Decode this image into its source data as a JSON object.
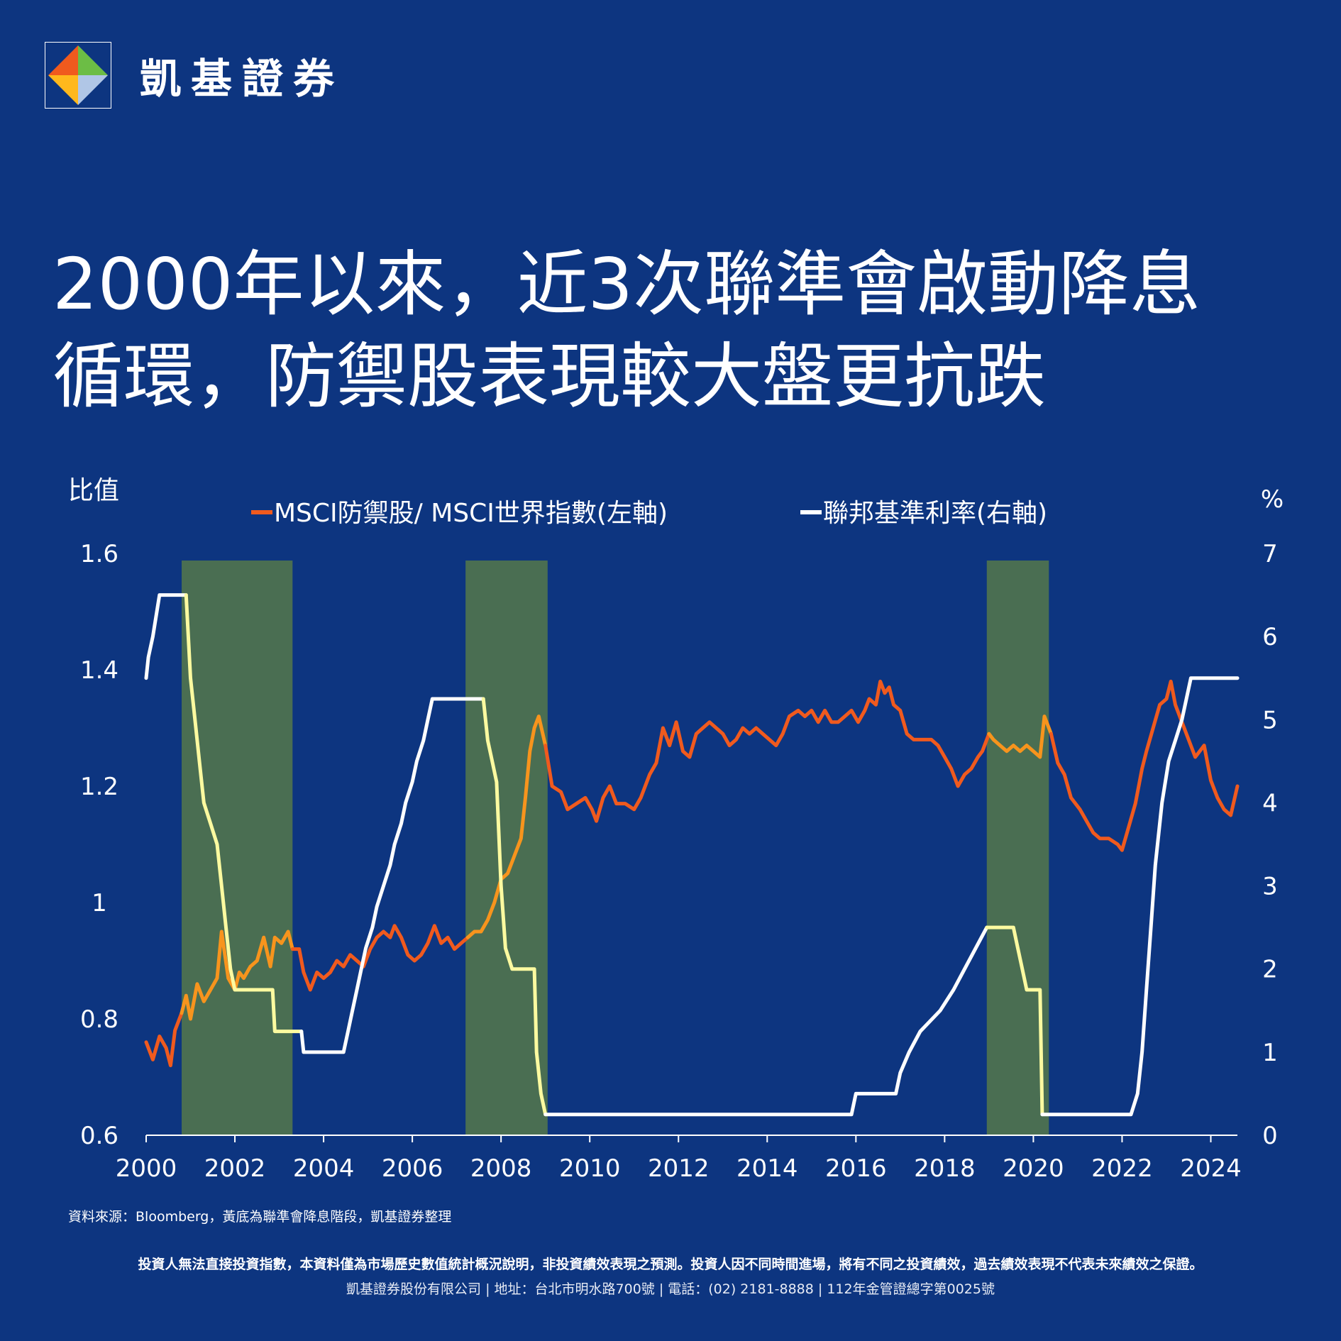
{
  "brand": {
    "name": "凱基證券"
  },
  "headline": {
    "line1": "2000年以來，近3次聯準會啟動降息",
    "line2": "循環，防禦股表現較大盤更抗跌"
  },
  "chart_data": {
    "type": "line",
    "left_axis": {
      "label": "比值",
      "ylim": [
        0.6,
        1.6
      ],
      "ticks": [
        "1.6",
        "1.4",
        "1.2",
        "1",
        "0.8",
        "0.6"
      ]
    },
    "right_axis": {
      "label": "%",
      "ylim": [
        0,
        7
      ],
      "ticks": [
        "7",
        "6",
        "5",
        "4",
        "3",
        "2",
        "1",
        "0"
      ]
    },
    "x_axis": {
      "xlim": [
        2000,
        2024.6
      ],
      "ticks": [
        "2000",
        "2002",
        "2004",
        "2006",
        "2008",
        "2010",
        "2012",
        "2014",
        "2016",
        "2018",
        "2020",
        "2022",
        "2024"
      ]
    },
    "legend": {
      "placement": "top",
      "entries": [
        {
          "name": "MSCI防禦股/ MSCI世界指數(左軸)",
          "color": "#f05a1e"
        },
        {
          "name": "聯邦基準利率(右軸)",
          "color": "#ffffff"
        }
      ]
    },
    "shaded_periods": [
      {
        "start": 2000.8,
        "end": 2003.3
      },
      {
        "start": 2007.2,
        "end": 2009.05
      },
      {
        "start": 2018.95,
        "end": 2020.35
      }
    ],
    "shade_color": "#4a6e52",
    "highlight_colors": {
      "ratio": "#f7941d",
      "rate": "#fcfaa0"
    },
    "series": [
      {
        "name": "MSCI防禦股/ MSCI世界指數(左軸)",
        "axis": "left",
        "color": "#f05a1e",
        "points": [
          [
            2000.0,
            0.76
          ],
          [
            2000.15,
            0.73
          ],
          [
            2000.3,
            0.77
          ],
          [
            2000.45,
            0.75
          ],
          [
            2000.55,
            0.72
          ],
          [
            2000.65,
            0.78
          ],
          [
            2000.8,
            0.81
          ],
          [
            2000.9,
            0.84
          ],
          [
            2001.0,
            0.8
          ],
          [
            2001.15,
            0.86
          ],
          [
            2001.3,
            0.83
          ],
          [
            2001.45,
            0.85
          ],
          [
            2001.6,
            0.87
          ],
          [
            2001.7,
            0.95
          ],
          [
            2001.85,
            0.87
          ],
          [
            2002.0,
            0.85
          ],
          [
            2002.1,
            0.88
          ],
          [
            2002.2,
            0.87
          ],
          [
            2002.35,
            0.89
          ],
          [
            2002.5,
            0.9
          ],
          [
            2002.65,
            0.94
          ],
          [
            2002.8,
            0.89
          ],
          [
            2002.9,
            0.94
          ],
          [
            2003.05,
            0.93
          ],
          [
            2003.2,
            0.95
          ],
          [
            2003.3,
            0.92
          ],
          [
            2003.45,
            0.92
          ],
          [
            2003.55,
            0.88
          ],
          [
            2003.7,
            0.85
          ],
          [
            2003.85,
            0.88
          ],
          [
            2004.0,
            0.87
          ],
          [
            2004.15,
            0.88
          ],
          [
            2004.3,
            0.9
          ],
          [
            2004.45,
            0.89
          ],
          [
            2004.6,
            0.91
          ],
          [
            2004.75,
            0.9
          ],
          [
            2004.9,
            0.89
          ],
          [
            2005.05,
            0.92
          ],
          [
            2005.2,
            0.94
          ],
          [
            2005.35,
            0.95
          ],
          [
            2005.5,
            0.94
          ],
          [
            2005.6,
            0.96
          ],
          [
            2005.75,
            0.94
          ],
          [
            2005.9,
            0.91
          ],
          [
            2006.05,
            0.9
          ],
          [
            2006.2,
            0.91
          ],
          [
            2006.35,
            0.93
          ],
          [
            2006.5,
            0.96
          ],
          [
            2006.65,
            0.93
          ],
          [
            2006.8,
            0.94
          ],
          [
            2006.95,
            0.92
          ],
          [
            2007.1,
            0.93
          ],
          [
            2007.25,
            0.94
          ],
          [
            2007.4,
            0.95
          ],
          [
            2007.55,
            0.95
          ],
          [
            2007.7,
            0.97
          ],
          [
            2007.85,
            1.0
          ],
          [
            2008.0,
            1.04
          ],
          [
            2008.15,
            1.05
          ],
          [
            2008.3,
            1.08
          ],
          [
            2008.45,
            1.11
          ],
          [
            2008.55,
            1.18
          ],
          [
            2008.65,
            1.26
          ],
          [
            2008.75,
            1.3
          ],
          [
            2008.85,
            1.32
          ],
          [
            2009.0,
            1.27
          ],
          [
            2009.15,
            1.2
          ],
          [
            2009.35,
            1.19
          ],
          [
            2009.5,
            1.16
          ],
          [
            2009.7,
            1.17
          ],
          [
            2009.9,
            1.18
          ],
          [
            2010.05,
            1.16
          ],
          [
            2010.15,
            1.14
          ],
          [
            2010.3,
            1.18
          ],
          [
            2010.45,
            1.2
          ],
          [
            2010.6,
            1.17
          ],
          [
            2010.8,
            1.17
          ],
          [
            2011.0,
            1.16
          ],
          [
            2011.15,
            1.18
          ],
          [
            2011.35,
            1.22
          ],
          [
            2011.5,
            1.24
          ],
          [
            2011.65,
            1.3
          ],
          [
            2011.8,
            1.27
          ],
          [
            2011.95,
            1.31
          ],
          [
            2012.1,
            1.26
          ],
          [
            2012.25,
            1.25
          ],
          [
            2012.4,
            1.29
          ],
          [
            2012.55,
            1.3
          ],
          [
            2012.7,
            1.31
          ],
          [
            2012.85,
            1.3
          ],
          [
            2013.0,
            1.29
          ],
          [
            2013.15,
            1.27
          ],
          [
            2013.3,
            1.28
          ],
          [
            2013.45,
            1.3
          ],
          [
            2013.6,
            1.29
          ],
          [
            2013.75,
            1.3
          ],
          [
            2013.9,
            1.29
          ],
          [
            2014.05,
            1.28
          ],
          [
            2014.2,
            1.27
          ],
          [
            2014.35,
            1.29
          ],
          [
            2014.5,
            1.32
          ],
          [
            2014.7,
            1.33
          ],
          [
            2014.85,
            1.32
          ],
          [
            2015.0,
            1.33
          ],
          [
            2015.15,
            1.31
          ],
          [
            2015.3,
            1.33
          ],
          [
            2015.45,
            1.31
          ],
          [
            2015.6,
            1.31
          ],
          [
            2015.75,
            1.32
          ],
          [
            2015.9,
            1.33
          ],
          [
            2016.05,
            1.31
          ],
          [
            2016.2,
            1.33
          ],
          [
            2016.3,
            1.35
          ],
          [
            2016.45,
            1.34
          ],
          [
            2016.55,
            1.38
          ],
          [
            2016.65,
            1.36
          ],
          [
            2016.75,
            1.37
          ],
          [
            2016.85,
            1.34
          ],
          [
            2017.0,
            1.33
          ],
          [
            2017.15,
            1.29
          ],
          [
            2017.3,
            1.28
          ],
          [
            2017.5,
            1.28
          ],
          [
            2017.7,
            1.28
          ],
          [
            2017.85,
            1.27
          ],
          [
            2018.0,
            1.25
          ],
          [
            2018.15,
            1.23
          ],
          [
            2018.3,
            1.2
          ],
          [
            2018.45,
            1.22
          ],
          [
            2018.6,
            1.23
          ],
          [
            2018.75,
            1.25
          ],
          [
            2018.85,
            1.26
          ],
          [
            2019.0,
            1.29
          ],
          [
            2019.1,
            1.28
          ],
          [
            2019.25,
            1.27
          ],
          [
            2019.4,
            1.26
          ],
          [
            2019.55,
            1.27
          ],
          [
            2019.7,
            1.26
          ],
          [
            2019.85,
            1.27
          ],
          [
            2020.0,
            1.26
          ],
          [
            2020.15,
            1.25
          ],
          [
            2020.25,
            1.32
          ],
          [
            2020.4,
            1.29
          ],
          [
            2020.55,
            1.24
          ],
          [
            2020.7,
            1.22
          ],
          [
            2020.85,
            1.18
          ],
          [
            2021.05,
            1.16
          ],
          [
            2021.2,
            1.14
          ],
          [
            2021.35,
            1.12
          ],
          [
            2021.5,
            1.11
          ],
          [
            2021.7,
            1.11
          ],
          [
            2021.9,
            1.1
          ],
          [
            2022.0,
            1.09
          ],
          [
            2022.15,
            1.13
          ],
          [
            2022.3,
            1.17
          ],
          [
            2022.45,
            1.23
          ],
          [
            2022.55,
            1.26
          ],
          [
            2022.7,
            1.3
          ],
          [
            2022.85,
            1.34
          ],
          [
            2023.0,
            1.35
          ],
          [
            2023.1,
            1.38
          ],
          [
            2023.2,
            1.34
          ],
          [
            2023.35,
            1.31
          ],
          [
            2023.5,
            1.28
          ],
          [
            2023.65,
            1.25
          ],
          [
            2023.85,
            1.27
          ],
          [
            2024.0,
            1.21
          ],
          [
            2024.15,
            1.18
          ],
          [
            2024.3,
            1.16
          ],
          [
            2024.45,
            1.15
          ],
          [
            2024.6,
            1.2
          ]
        ]
      },
      {
        "name": "聯邦基準利率(右軸)",
        "axis": "right",
        "color": "#ffffff",
        "points": [
          [
            2000.0,
            5.5
          ],
          [
            2000.05,
            5.75
          ],
          [
            2000.15,
            6.0
          ],
          [
            2000.3,
            6.5
          ],
          [
            2000.9,
            6.5
          ],
          [
            2001.0,
            5.5
          ],
          [
            2001.1,
            5.0
          ],
          [
            2001.2,
            4.5
          ],
          [
            2001.3,
            4.0
          ],
          [
            2001.45,
            3.75
          ],
          [
            2001.6,
            3.5
          ],
          [
            2001.7,
            3.0
          ],
          [
            2001.8,
            2.5
          ],
          [
            2001.9,
            2.0
          ],
          [
            2002.0,
            1.75
          ],
          [
            2002.85,
            1.75
          ],
          [
            2002.9,
            1.25
          ],
          [
            2003.5,
            1.25
          ],
          [
            2003.55,
            1.0
          ],
          [
            2004.45,
            1.0
          ],
          [
            2004.55,
            1.25
          ],
          [
            2004.65,
            1.5
          ],
          [
            2004.75,
            1.75
          ],
          [
            2004.85,
            2.0
          ],
          [
            2004.95,
            2.25
          ],
          [
            2005.1,
            2.5
          ],
          [
            2005.2,
            2.75
          ],
          [
            2005.35,
            3.0
          ],
          [
            2005.5,
            3.25
          ],
          [
            2005.6,
            3.5
          ],
          [
            2005.75,
            3.75
          ],
          [
            2005.85,
            4.0
          ],
          [
            2006.0,
            4.25
          ],
          [
            2006.1,
            4.5
          ],
          [
            2006.25,
            4.75
          ],
          [
            2006.35,
            5.0
          ],
          [
            2006.45,
            5.25
          ],
          [
            2007.6,
            5.25
          ],
          [
            2007.7,
            4.75
          ],
          [
            2007.8,
            4.5
          ],
          [
            2007.9,
            4.25
          ],
          [
            2008.0,
            3.0
          ],
          [
            2008.1,
            2.25
          ],
          [
            2008.25,
            2.0
          ],
          [
            2008.75,
            2.0
          ],
          [
            2008.8,
            1.0
          ],
          [
            2008.9,
            0.5
          ],
          [
            2009.0,
            0.25
          ],
          [
            2015.9,
            0.25
          ],
          [
            2016.0,
            0.5
          ],
          [
            2016.9,
            0.5
          ],
          [
            2017.0,
            0.75
          ],
          [
            2017.2,
            1.0
          ],
          [
            2017.45,
            1.25
          ],
          [
            2017.9,
            1.5
          ],
          [
            2018.2,
            1.75
          ],
          [
            2018.45,
            2.0
          ],
          [
            2018.7,
            2.25
          ],
          [
            2018.95,
            2.5
          ],
          [
            2019.55,
            2.5
          ],
          [
            2019.65,
            2.25
          ],
          [
            2019.75,
            2.0
          ],
          [
            2019.85,
            1.75
          ],
          [
            2020.15,
            1.75
          ],
          [
            2020.2,
            0.25
          ],
          [
            2022.2,
            0.25
          ],
          [
            2022.35,
            0.5
          ],
          [
            2022.45,
            1.0
          ],
          [
            2022.55,
            1.75
          ],
          [
            2022.65,
            2.5
          ],
          [
            2022.75,
            3.25
          ],
          [
            2022.9,
            4.0
          ],
          [
            2023.05,
            4.5
          ],
          [
            2023.2,
            4.75
          ],
          [
            2023.35,
            5.0
          ],
          [
            2023.45,
            5.25
          ],
          [
            2023.55,
            5.5
          ],
          [
            2024.6,
            5.5
          ]
        ]
      }
    ],
    "source_note": "資料來源：Bloomberg，黃底為聯準會降息階段，凱基證券整理"
  },
  "footer": {
    "disclaimer": "投資人無法直接投資指數，本資料僅為市場歷史數值統計概況說明，非投資績效表現之預測。投資人因不同時間進場，將有不同之投資績效，過去績效表現不代表未來績效之保證。",
    "company": "凱基證券股份有限公司 | 地址：台北市明水路700號 | 電話：(02) 2181-8888 | 112年金管證總字第0025號"
  }
}
